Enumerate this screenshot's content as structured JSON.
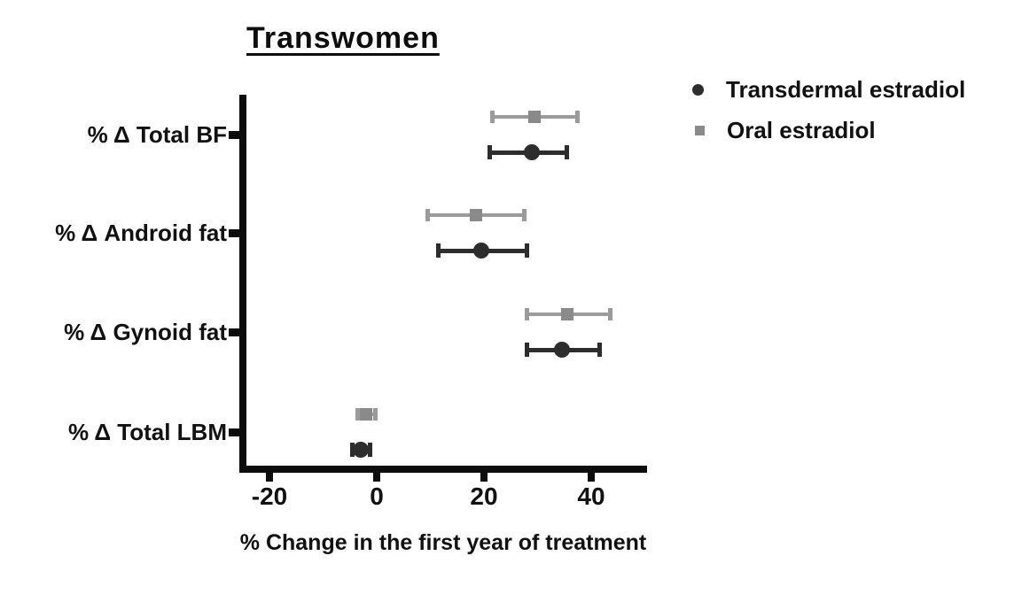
{
  "title": "Transwomen",
  "xlabel": "% Change in the first year of treatment",
  "legend": {
    "items": [
      {
        "label": "Transdermal estradiol",
        "marker": "circle"
      },
      {
        "label": "Oral estradiol",
        "marker": "square"
      }
    ]
  },
  "colors": {
    "transdermal": "#2d2d2d",
    "oral_line": "#9b9b9b",
    "oral_marker": "#8a8a8a",
    "axis": "#0d0d0d"
  },
  "chart_data": {
    "type": "scatter",
    "subtype": "forest-plot-with-error-bars",
    "title": "Transwomen",
    "xlabel": "% Change in the first year of treatment",
    "categories": [
      "% Δ Total BF",
      "% Δ Android fat",
      "% Δ Gynoid fat",
      "% Δ Total LBM"
    ],
    "x_ticks": [
      -20,
      0,
      20,
      40
    ],
    "xlim": [
      -25,
      50
    ],
    "grid": false,
    "legend_position": "top-right",
    "series": [
      {
        "name": "Transdermal estradiol",
        "marker": "circle",
        "color": "#2d2d2d",
        "values": [
          29,
          19.5,
          34.5,
          -3
        ],
        "ci_low": [
          21,
          11.5,
          28,
          -4.6
        ],
        "ci_high": [
          35.5,
          28,
          41.5,
          -1.2
        ]
      },
      {
        "name": "Oral estradiol",
        "marker": "square",
        "color": "#8a8a8a",
        "values": [
          29.5,
          18.5,
          35.5,
          -2
        ],
        "ci_low": [
          21.5,
          9.5,
          28,
          -3.6
        ],
        "ci_high": [
          37.5,
          27.5,
          43.5,
          -0.3
        ]
      }
    ]
  }
}
